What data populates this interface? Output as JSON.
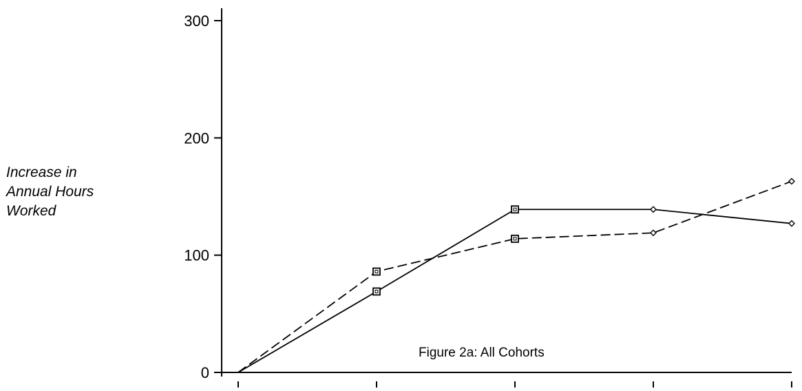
{
  "chart_data": {
    "type": "line",
    "title": "",
    "annotation": "Figure 2a:  All Cohorts",
    "ylabel_lines": [
      "Increase in",
      "Annual Hours",
      "Worked"
    ],
    "xlabel": "",
    "ylim": [
      0,
      300
    ],
    "yticks": [
      0,
      100,
      200,
      300
    ],
    "x": [
      0,
      1,
      2,
      3,
      4
    ],
    "xlim": [
      0,
      4
    ],
    "grid": false,
    "legend": "none",
    "series": [
      {
        "style": "solid",
        "color": "#000000",
        "values": [
          0,
          69,
          139,
          139,
          127
        ],
        "markers": [
          "none",
          "square",
          "square",
          "diamond",
          "diamond"
        ]
      },
      {
        "style": "dashed",
        "color": "#000000",
        "values": [
          0,
          86,
          114,
          119,
          163
        ],
        "markers": [
          "none",
          "square",
          "square",
          "diamond",
          "diamond"
        ]
      }
    ]
  }
}
